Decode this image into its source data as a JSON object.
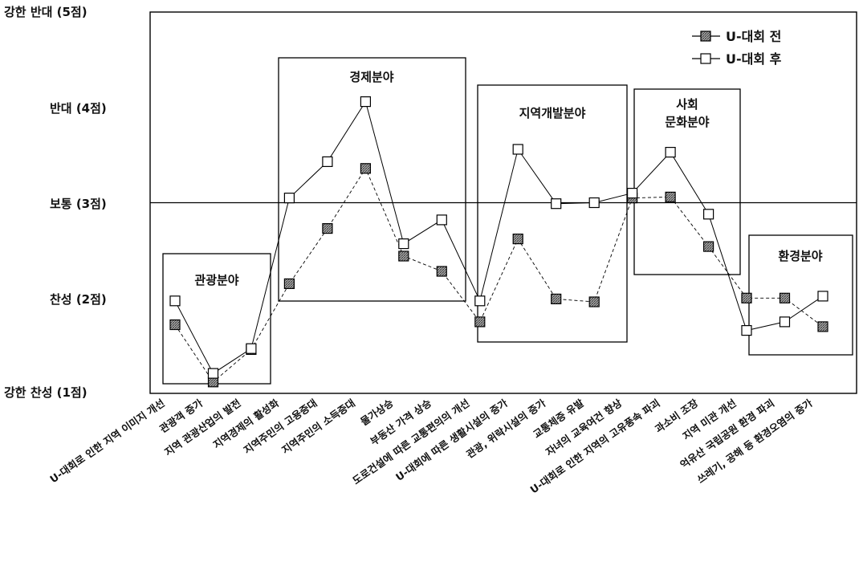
{
  "chart_data": {
    "type": "line",
    "ylim": [
      1,
      5
    ],
    "y_tick_values": [
      5,
      4,
      3,
      2,
      1
    ],
    "y_tick_labels": [
      "강한 반대 (5점)",
      "반대 (4점)",
      "보통 (3점)",
      "찬성 (2점)",
      "강한 찬성 (1점)"
    ],
    "reference_line": 3,
    "categories": [
      "U-대회로 인한 지역 이미지 개선",
      "관광객 증가",
      "지역 관광산업의 발전",
      "지역경제의 활성화",
      "지역주민의 고용증대",
      "지역주민의 소득증대",
      "물가상승",
      "부동산 가격 상승",
      "도로건설에 따른 교통편의의 개선",
      "U-대회에 따른 생활시설의 증가",
      "관광, 위락시설의 증가",
      "교통체증 유발",
      "자녀의 교육여건 향상",
      "U-대회로 인한 지역의 고유풍속 파괴",
      "과소비 조장",
      "지역 미관 개선",
      "억유산 국립공원 환경 파괴",
      "쓰레기, 공해 등 환경오염의 증가"
    ],
    "series": [
      {
        "name": "U-대회 전",
        "marker": "hatched-square",
        "values": [
          1.72,
          1.12,
          1.46,
          2.15,
          2.73,
          3.36,
          2.44,
          2.28,
          1.75,
          2.62,
          1.99,
          1.96,
          3.05,
          3.06,
          2.54,
          2.0,
          2.0,
          1.7
        ]
      },
      {
        "name": "U-대회 후",
        "marker": "open-square",
        "values": [
          1.97,
          1.21,
          1.47,
          3.05,
          3.43,
          4.06,
          2.57,
          2.82,
          1.97,
          3.56,
          2.99,
          3.0,
          3.1,
          3.53,
          2.88,
          1.66,
          1.75,
          2.02
        ]
      }
    ],
    "groups": [
      {
        "label": [
          "관광분야"
        ],
        "from": 0,
        "to": 2
      },
      {
        "label": [
          "경제분야"
        ],
        "from": 3,
        "to": 7
      },
      {
        "label": [
          "지역개발분야"
        ],
        "from": 8,
        "to": 11
      },
      {
        "label": [
          "사회",
          "문화분야"
        ],
        "from": 12,
        "to": 14
      },
      {
        "label": [
          "환경분야"
        ],
        "from": 15,
        "to": 17
      }
    ],
    "legend_position": "top-right",
    "grid": false
  }
}
